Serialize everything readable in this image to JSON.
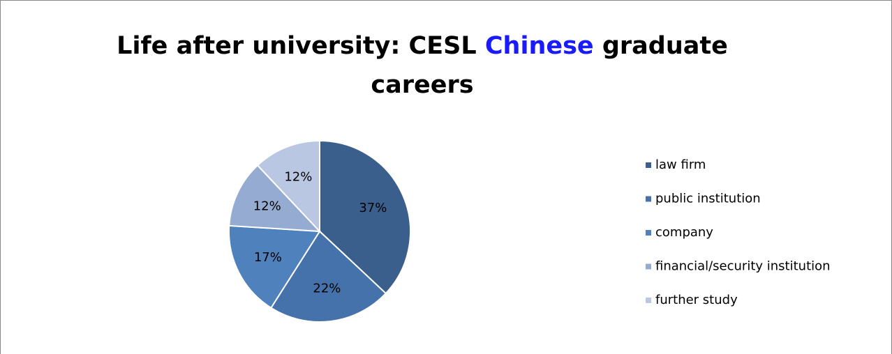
{
  "chart_data": {
    "type": "pie",
    "title": [
      "Life after university: CESL",
      "Chinese",
      "graduate careers"
    ],
    "title_highlight_color": "#1a1aff",
    "categories": [
      "law firm",
      "public institution",
      "company",
      "financial/security institution",
      "further study"
    ],
    "values": [
      37,
      22,
      17,
      12,
      12
    ],
    "value_labels": [
      "37%",
      "22%",
      "17%",
      "12%",
      "12%"
    ],
    "colors": [
      "#3b5f8d",
      "#4572aa",
      "#4f81bd",
      "#95abd1",
      "#b9c7e2"
    ],
    "legend": "right"
  }
}
